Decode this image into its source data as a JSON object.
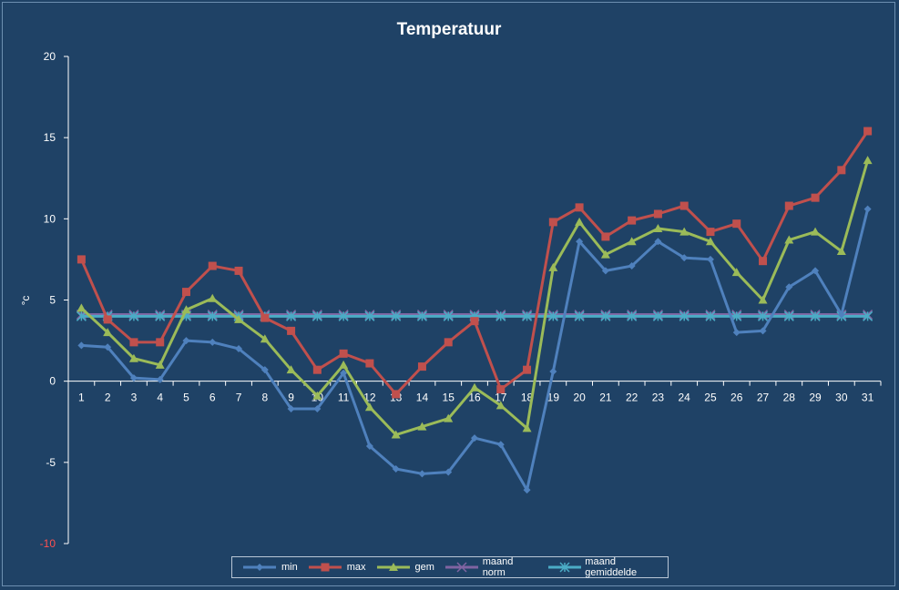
{
  "chart_data": {
    "type": "line",
    "title": "Temperatuur",
    "xlabel": "",
    "ylabel": "°c",
    "ylim": [
      -10,
      20
    ],
    "yticks": [
      "20",
      "15",
      "10",
      "5",
      "0",
      "-5",
      "-10"
    ],
    "x": [
      1,
      2,
      3,
      4,
      5,
      6,
      7,
      8,
      9,
      10,
      11,
      12,
      13,
      14,
      15,
      16,
      17,
      18,
      19,
      20,
      21,
      22,
      23,
      24,
      25,
      26,
      27,
      28,
      29,
      30,
      31
    ],
    "grid": false,
    "legend_position": "bottom",
    "series": [
      {
        "name": "min",
        "color": "#4f81bd",
        "marker": "diamond",
        "values": [
          2.2,
          2.1,
          0.2,
          0.1,
          2.5,
          2.4,
          2.0,
          0.7,
          -1.7,
          -1.7,
          0.5,
          -4.0,
          -5.4,
          -5.7,
          -5.6,
          -3.5,
          -3.9,
          -6.7,
          0.6,
          8.6,
          6.8,
          7.1,
          8.6,
          7.6,
          7.5,
          3.0,
          3.1,
          5.8,
          6.8,
          4.1,
          10.6
        ]
      },
      {
        "name": "max",
        "color": "#c0504d",
        "marker": "square",
        "values": [
          7.5,
          3.8,
          2.4,
          2.4,
          5.5,
          7.1,
          6.8,
          3.9,
          3.1,
          0.7,
          1.7,
          1.1,
          -0.8,
          0.9,
          2.4,
          3.7,
          -0.5,
          0.7,
          9.8,
          10.7,
          8.9,
          9.9,
          10.3,
          10.8,
          9.2,
          9.7,
          7.4,
          10.8,
          11.3,
          13.0,
          15.4
        ]
      },
      {
        "name": "gem",
        "color": "#9bbb59",
        "marker": "triangle",
        "values": [
          4.5,
          3.0,
          1.4,
          1.0,
          4.4,
          5.1,
          3.8,
          2.6,
          0.7,
          -0.9,
          1.0,
          -1.6,
          -3.3,
          -2.8,
          -2.3,
          -0.4,
          -1.5,
          -2.9,
          7.0,
          9.8,
          7.8,
          8.6,
          9.4,
          9.2,
          8.6,
          6.7,
          5.0,
          8.7,
          9.2,
          8.0,
          13.6
        ]
      },
      {
        "name": "maand norm",
        "color": "#8064a2",
        "marker": "x",
        "values": [
          4.1,
          4.1,
          4.1,
          4.1,
          4.1,
          4.1,
          4.1,
          4.1,
          4.1,
          4.1,
          4.1,
          4.1,
          4.1,
          4.1,
          4.1,
          4.1,
          4.1,
          4.1,
          4.1,
          4.1,
          4.1,
          4.1,
          4.1,
          4.1,
          4.1,
          4.1,
          4.1,
          4.1,
          4.1,
          4.1,
          4.1
        ]
      },
      {
        "name": "maand gemiddelde",
        "color": "#4bacc6",
        "marker": "star",
        "values": [
          4.0,
          4.0,
          4.0,
          4.0,
          4.0,
          4.0,
          4.0,
          4.0,
          4.0,
          4.0,
          4.0,
          4.0,
          4.0,
          4.0,
          4.0,
          4.0,
          4.0,
          4.0,
          4.0,
          4.0,
          4.0,
          4.0,
          4.0,
          4.0,
          4.0,
          4.0,
          4.0,
          4.0,
          4.0,
          4.0,
          4.0
        ]
      }
    ]
  },
  "colors": {
    "background": "#1f4266",
    "axis": "#ffffff",
    "text": "#ffffff",
    "negative_tick": "#ff5050"
  }
}
